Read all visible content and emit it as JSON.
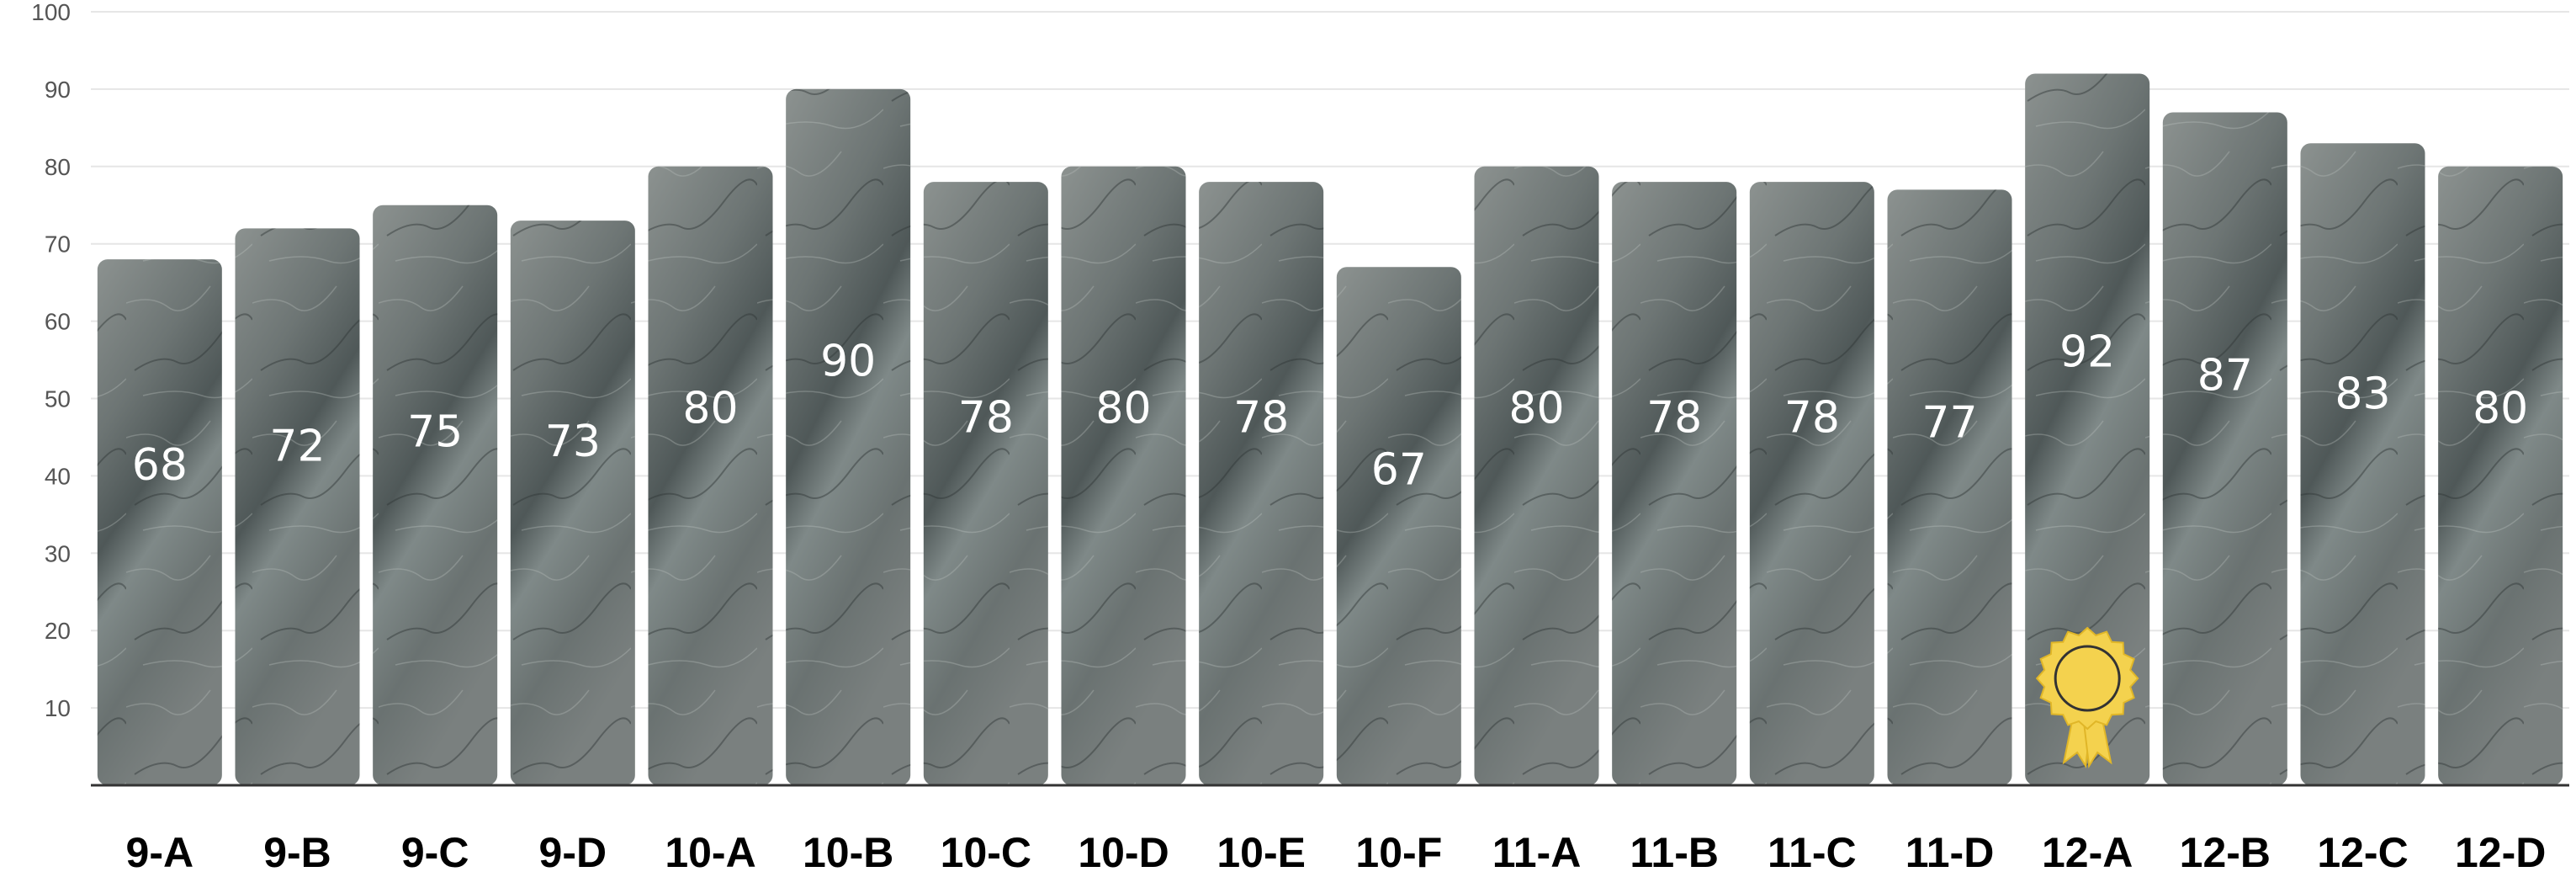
{
  "chart_data": {
    "type": "bar",
    "categories": [
      "9-A",
      "9-B",
      "9-C",
      "9-D",
      "10-A",
      "10-B",
      "10-C",
      "10-D",
      "10-E",
      "10-F",
      "11-A",
      "11-B",
      "11-C",
      "11-D",
      "12-A",
      "12-B",
      "12-C",
      "12-D"
    ],
    "values": [
      68,
      72,
      75,
      73,
      80,
      90,
      78,
      80,
      78,
      67,
      80,
      78,
      78,
      77,
      92,
      87,
      83,
      80
    ],
    "title": "",
    "xlabel": "",
    "ylabel": "",
    "ylim": [
      0,
      100
    ],
    "yticks": [
      10,
      20,
      30,
      40,
      50,
      60,
      70,
      80,
      90,
      100
    ],
    "grid": true,
    "legend": "none",
    "bar_texture": "gray-stone",
    "highlight": {
      "category": "12-A",
      "badge": "award-ribbon-icon"
    },
    "colors": {
      "bar_base": "#6e7676",
      "bar_dark": "#4f5858",
      "bar_light": "#9aa09d",
      "value_text": "#ffffff",
      "badge_gold": "#f4d24e",
      "badge_outline": "#e0b628"
    }
  }
}
